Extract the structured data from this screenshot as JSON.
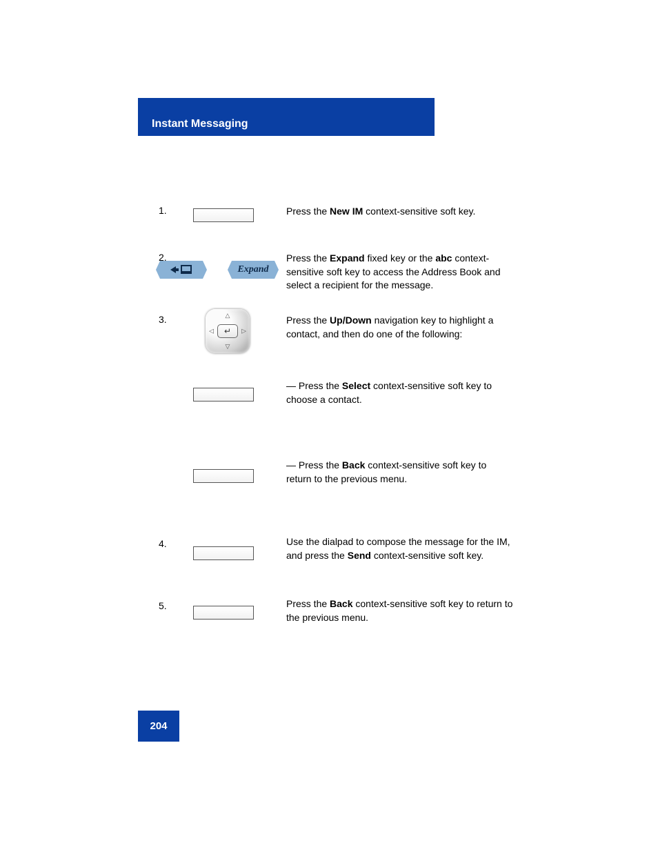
{
  "header": {
    "title": "Instant Messaging"
  },
  "footer": {
    "page_number": "204"
  },
  "steps": {
    "s1": {
      "num": "1.",
      "right": "Press the <b>New IM</b> context-sensitive soft key."
    },
    "s2": {
      "num": "2.",
      "expand_label": "Expand",
      "right": "Press the <b>Expand</b> fixed key or the <b>abc</b> context-sensitive soft key to access the Address Book and select a recipient for the message."
    },
    "s3": {
      "num": "3.",
      "right": "Press the <b>Up/Down</b> navigation key to highlight a contact, and then do one of the following:"
    },
    "s4": {
      "right_a": "— Press the <b>Select</b> context-sensitive soft key to choose a contact.",
      "right_b": "— Press the <b>Back</b> context-sensitive soft key to return to the previous menu."
    },
    "s5": {
      "num": "4.",
      "right": "Use the dialpad to compose the message for the IM, and press the <b>Send</b> context-sensitive soft key."
    },
    "s6": {
      "num": "5.",
      "right": "Press the <b>Back</b> context-sensitive soft key to return to the previous menu."
    }
  },
  "colors": {
    "brand_blue": "#0a3fa3",
    "key_blue": "#8ab2d6"
  }
}
